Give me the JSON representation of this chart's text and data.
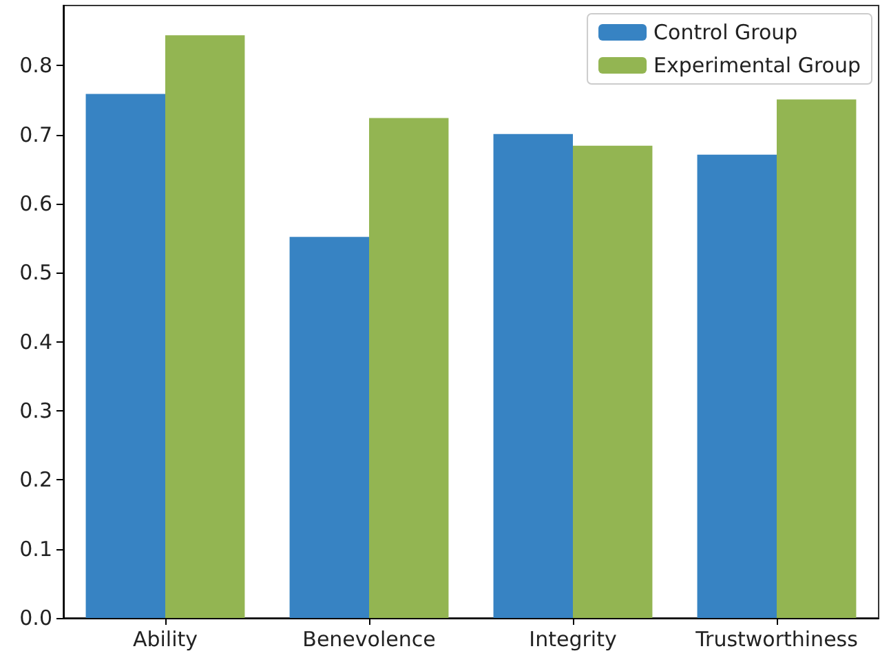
{
  "chart_data": {
    "type": "bar",
    "categories": [
      "Ability",
      "Benevolence",
      "Integrity",
      "Trustworthiness"
    ],
    "series": [
      {
        "name": "Control Group",
        "color": "#3783c3",
        "values": [
          0.759,
          0.552,
          0.701,
          0.671
        ]
      },
      {
        "name": "Experimental Group",
        "color": "#93b552",
        "values": [
          0.844,
          0.724,
          0.684,
          0.751
        ]
      }
    ],
    "ylim": [
      0,
      0.887
    ],
    "yticks": [
      {
        "value": 0,
        "label": "0.0"
      },
      0.1,
      0.2,
      0.3,
      0.4,
      0.5,
      0.6,
      0.7,
      0.8
    ],
    "grid": false,
    "legend": "top right"
  }
}
